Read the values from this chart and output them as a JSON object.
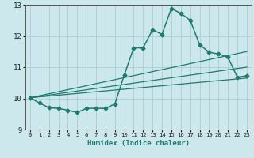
{
  "title": "",
  "xlabel": "Humidex (Indice chaleur)",
  "xlim": [
    -0.5,
    23.5
  ],
  "ylim": [
    9,
    13
  ],
  "yticks": [
    9,
    10,
    11,
    12,
    13
  ],
  "xticks": [
    0,
    1,
    2,
    3,
    4,
    5,
    6,
    7,
    8,
    9,
    10,
    11,
    12,
    13,
    14,
    15,
    16,
    17,
    18,
    19,
    20,
    21,
    22,
    23
  ],
  "bg_color": "#cde8ec",
  "grid_color": "#aacdd4",
  "line_color": "#1e7b72",
  "main_line": {
    "x": [
      0,
      1,
      2,
      3,
      4,
      5,
      6,
      7,
      8,
      9,
      10,
      11,
      12,
      13,
      14,
      15,
      16,
      17,
      18,
      19,
      20,
      21,
      22,
      23
    ],
    "y": [
      10.02,
      9.85,
      9.7,
      9.68,
      9.62,
      9.55,
      9.68,
      9.68,
      9.68,
      9.82,
      10.75,
      11.62,
      11.62,
      12.2,
      12.05,
      12.88,
      12.72,
      12.5,
      11.72,
      11.48,
      11.42,
      11.32,
      10.68,
      10.72
    ],
    "marker": "D",
    "markersize": 2.5,
    "linewidth": 1.1
  },
  "trend_lines": [
    {
      "x": [
        0,
        23
      ],
      "y": [
        10.02,
        11.5
      ]
    },
    {
      "x": [
        0,
        23
      ],
      "y": [
        10.02,
        11.0
      ]
    },
    {
      "x": [
        0,
        23
      ],
      "y": [
        10.02,
        10.65
      ]
    }
  ]
}
